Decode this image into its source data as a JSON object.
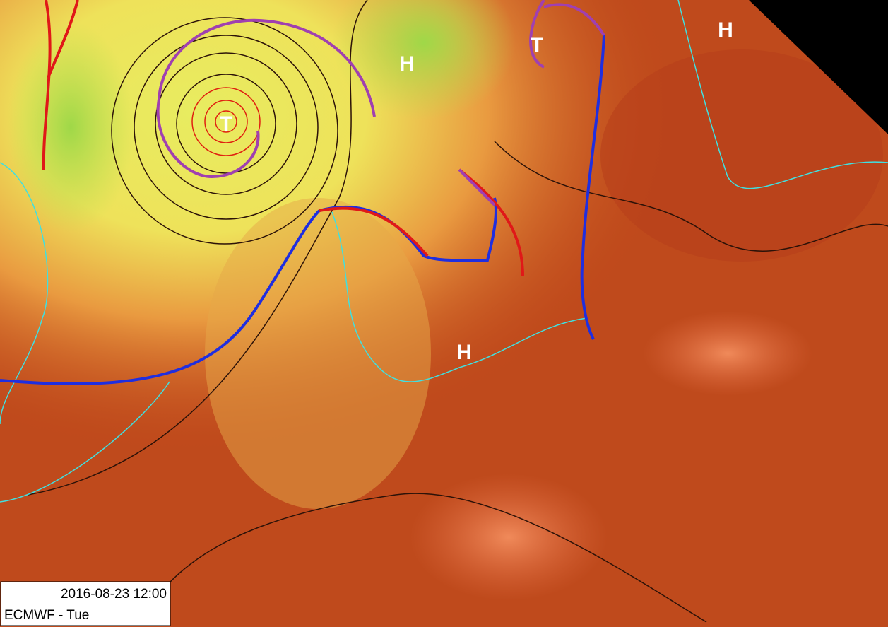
{
  "pressure_centers": [
    {
      "label": "H"
    },
    {
      "label": "H"
    },
    {
      "label": "H"
    },
    {
      "label": "T"
    },
    {
      "label": "T"
    }
  ],
  "info_box": {
    "datetime": "2016-08-23 12:00",
    "model": "ECMWF - Tue"
  }
}
